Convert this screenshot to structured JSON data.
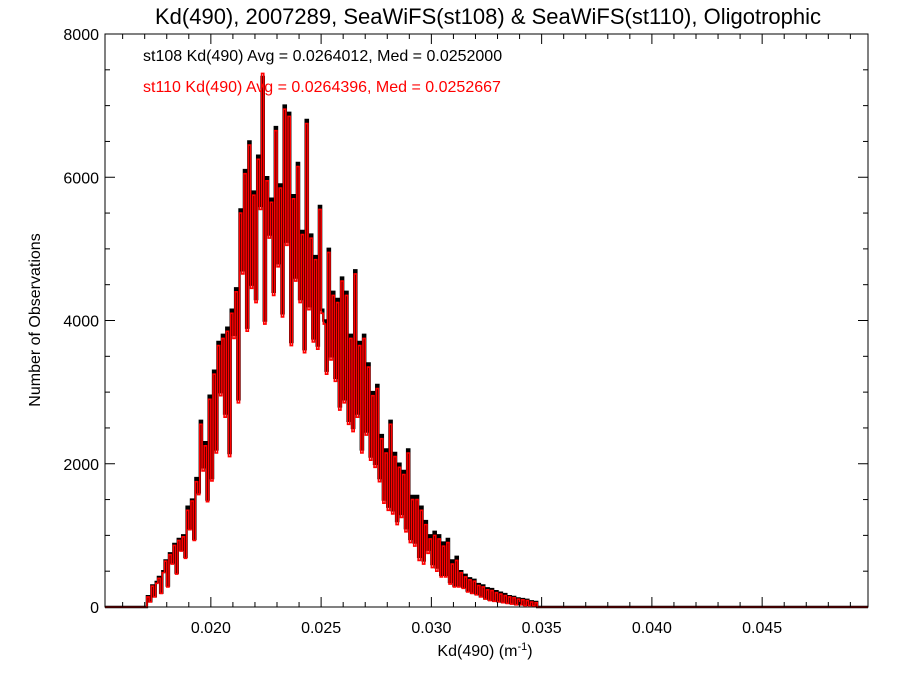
{
  "chart_data": {
    "type": "histogram",
    "title": "Kd(490), 2007289, SeaWiFS(st108) & SeaWiFS(st110), Oligotrophic",
    "xlabel_main": "Kd(490) (m",
    "xlabel_sup": "-1",
    "xlabel_close": ")",
    "ylabel": "Number of Observations",
    "xlim": [
      0.0152,
      0.0498
    ],
    "ylim": [
      0,
      8000
    ],
    "x_ticks": [
      0.02,
      0.025,
      0.03,
      0.035,
      0.04,
      0.045
    ],
    "x_tick_labels": [
      "0.020",
      "0.025",
      "0.030",
      "0.035",
      "0.040",
      "0.045"
    ],
    "y_ticks": [
      0,
      2000,
      4000,
      6000,
      8000
    ],
    "y_tick_labels": [
      "0",
      "2000",
      "4000",
      "6000",
      "8000"
    ],
    "grid": false,
    "stats": [
      {
        "text": "st108 Kd(490) Avg = 0.0264012, Med = 0.0252000",
        "color": "#000000"
      },
      {
        "text": "st110 Kd(490) Avg = 0.0264396, Med = 0.0252667",
        "color": "#ff0000"
      }
    ],
    "series": [
      {
        "name": "st108",
        "color": "#000000",
        "bin_start": 0.0152,
        "bin_width": 0.0001,
        "values": [
          0,
          0,
          0,
          0,
          0,
          0,
          0,
          0,
          0,
          0,
          0,
          0,
          0,
          0,
          0,
          0,
          0,
          0,
          0,
          150,
          80,
          300,
          150,
          350,
          420,
          200,
          500,
          650,
          300,
          750,
          620,
          880,
          480,
          950,
          800,
          1000,
          700,
          1400,
          1100,
          1500,
          950,
          1800,
          1600,
          2600,
          1950,
          2300,
          1500,
          2950,
          1800,
          3300,
          2200,
          3700,
          3000,
          3800,
          2700,
          3900,
          2150,
          4150,
          3800,
          4450,
          2900,
          5550,
          4700,
          6100,
          3900,
          6500,
          4500,
          5800,
          4300,
          6300,
          5600,
          7400,
          4000,
          6000,
          5200,
          5700,
          4400,
          6700,
          4800,
          5900,
          4100,
          7000,
          5100,
          6900,
          3700,
          5750,
          4600,
          6200,
          4300,
          5250,
          3600,
          6800,
          4200,
          5200,
          3750,
          4900,
          3650,
          5600,
          4150,
          4000,
          3300,
          5000,
          3500,
          4400,
          3200,
          4300,
          2800,
          4600,
          2900,
          4400,
          2600,
          3800,
          2500,
          4700,
          2700,
          3700,
          2200,
          3800,
          2450,
          3400,
          2100,
          3000,
          2000,
          3100,
          1800,
          2400,
          1500,
          2200,
          1400,
          2600,
          1350,
          2150,
          1200,
          2000,
          1300,
          1900,
          1100,
          2200,
          950,
          1550,
          900,
          1550,
          700,
          1400,
          650,
          1200,
          800,
          1000,
          600,
          1050,
          550,
          1000,
          450,
          900,
          450,
          950,
          350,
          650,
          300,
          700,
          300,
          500,
          280,
          450,
          230,
          400,
          200,
          380,
          180,
          320,
          150,
          300,
          120,
          260,
          100,
          250,
          90,
          220,
          80,
          200,
          70,
          180,
          60,
          150,
          50,
          140,
          40,
          120,
          40,
          110,
          30,
          100,
          30,
          80,
          20,
          70
        ]
      },
      {
        "name": "st110",
        "color": "#ff0000",
        "bin_start": 0.0152,
        "bin_width": 0.0001,
        "values": [
          0,
          0,
          0,
          0,
          0,
          0,
          0,
          0,
          0,
          0,
          0,
          0,
          0,
          0,
          0,
          0,
          0,
          0,
          0,
          140,
          70,
          290,
          140,
          330,
          400,
          190,
          480,
          640,
          280,
          730,
          600,
          860,
          460,
          930,
          780,
          980,
          680,
          1350,
          1080,
          1480,
          930,
          1750,
          1570,
          2550,
          1900,
          2250,
          1470,
          2900,
          1760,
          3250,
          2150,
          3650,
          2950,
          3750,
          2650,
          3850,
          2100,
          4100,
          3750,
          4400,
          2850,
          5500,
          4650,
          6050,
          3850,
          6450,
          4450,
          5750,
          4250,
          6250,
          5550,
          7450,
          3950,
          5950,
          5150,
          5650,
          4350,
          6650,
          4750,
          5850,
          4050,
          6950,
          5050,
          6850,
          3650,
          5700,
          4550,
          6150,
          4250,
          5200,
          3550,
          6750,
          4150,
          5150,
          3700,
          4850,
          3600,
          5550,
          4100,
          3950,
          3250,
          4950,
          3450,
          4350,
          3150,
          4250,
          2750,
          4550,
          2850,
          4350,
          2550,
          3750,
          2450,
          4650,
          2650,
          3650,
          2150,
          3750,
          2400,
          3350,
          2050,
          2950,
          1950,
          3050,
          1750,
          2350,
          1450,
          2150,
          1350,
          2550,
          1300,
          2100,
          1150,
          1950,
          1250,
          1850,
          1050,
          2150,
          900,
          1500,
          850,
          1500,
          650,
          1350,
          600,
          1150,
          750,
          950,
          550,
          1000,
          500,
          950,
          420,
          850,
          420,
          900,
          320,
          600,
          280,
          650,
          280,
          480,
          260,
          420,
          210,
          380,
          190,
          360,
          170,
          300,
          140,
          280,
          110,
          240,
          90,
          230,
          80,
          200,
          70,
          180,
          60,
          160,
          50,
          140,
          40,
          130,
          30,
          110,
          30,
          100,
          20,
          90,
          20,
          70,
          15,
          60
        ]
      }
    ]
  }
}
